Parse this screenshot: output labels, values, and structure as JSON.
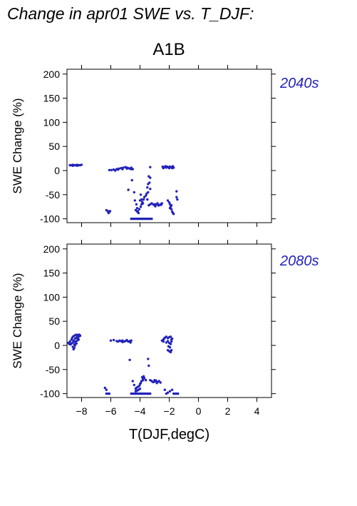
{
  "title": "Change in apr01 SWE vs. T_DJF:",
  "scenario": "A1B",
  "chart_data": [
    {
      "type": "scatter",
      "panel_label": "2040s",
      "xlabel": "T(DJF,degC)",
      "ylabel": "SWE Change (%)",
      "xlim": [
        -9,
        5
      ],
      "ylim": [
        -108,
        210
      ],
      "xticks": [
        -8,
        -6,
        -4,
        -2,
        0,
        2,
        4
      ],
      "yticks": [
        -100,
        -50,
        0,
        50,
        100,
        150,
        200
      ],
      "marker_color": "#2222bb",
      "points": [
        [
          -8.8,
          11
        ],
        [
          -8.7,
          11
        ],
        [
          -8.6,
          12
        ],
        [
          -8.5,
          11
        ],
        [
          -8.4,
          11
        ],
        [
          -8.3,
          12
        ],
        [
          -8.2,
          11
        ],
        [
          -8.1,
          11
        ],
        [
          -8.0,
          12
        ],
        [
          -8.6,
          10
        ],
        [
          -8.3,
          10
        ],
        [
          -6.3,
          -82
        ],
        [
          -6.2,
          -84
        ],
        [
          -6.1,
          -86
        ],
        [
          -6.15,
          -88
        ],
        [
          -6.05,
          -84
        ],
        [
          -6.2,
          -85
        ],
        [
          -6.1,
          1
        ],
        [
          -5.95,
          1
        ],
        [
          -5.8,
          2
        ],
        [
          -5.7,
          0
        ],
        [
          -5.6,
          3
        ],
        [
          -5.45,
          4
        ],
        [
          -5.3,
          5
        ],
        [
          -5.15,
          6
        ],
        [
          -5.0,
          7
        ],
        [
          -4.9,
          6
        ],
        [
          -4.8,
          5
        ],
        [
          -4.7,
          4
        ],
        [
          -4.6,
          3
        ],
        [
          -4.5,
          3
        ],
        [
          -5.5,
          2
        ],
        [
          -5.2,
          3
        ],
        [
          -4.9,
          4
        ],
        [
          -4.6,
          6
        ],
        [
          -4.8,
          -40
        ],
        [
          -4.55,
          -20
        ],
        [
          -4.4,
          -45
        ],
        [
          -4.35,
          -62
        ],
        [
          -4.25,
          -70
        ],
        [
          -4.2,
          -78
        ],
        [
          -4.15,
          -84
        ],
        [
          -4.1,
          -88
        ],
        [
          -4.05,
          -80
        ],
        [
          -3.95,
          -75
        ],
        [
          -3.9,
          -70
        ],
        [
          -3.85,
          -65
        ],
        [
          -3.8,
          -68
        ],
        [
          -3.75,
          -60
        ],
        [
          -3.7,
          -55
        ],
        [
          -3.6,
          -52
        ],
        [
          -3.55,
          -48
        ],
        [
          -3.5,
          -35
        ],
        [
          -3.45,
          -28
        ],
        [
          -3.4,
          -12
        ],
        [
          -3.35,
          -25
        ],
        [
          -3.3,
          -38
        ],
        [
          -4.0,
          -62
        ],
        [
          -3.95,
          -50
        ],
        [
          -4.3,
          -82
        ],
        [
          -4.2,
          -85
        ],
        [
          -3.9,
          -60
        ],
        [
          -3.45,
          -45
        ],
        [
          -3.3,
          -15
        ],
        [
          -3.5,
          -60
        ],
        [
          -4.6,
          -100
        ],
        [
          -4.5,
          -100
        ],
        [
          -4.4,
          -100
        ],
        [
          -4.3,
          -100
        ],
        [
          -4.2,
          -100
        ],
        [
          -4.1,
          -100
        ],
        [
          -4.0,
          -100
        ],
        [
          -3.9,
          -100
        ],
        [
          -3.8,
          -100
        ],
        [
          -3.7,
          -100
        ],
        [
          -3.6,
          -100
        ],
        [
          -3.5,
          -100
        ],
        [
          -3.4,
          -100
        ],
        [
          -3.3,
          -100
        ],
        [
          -3.2,
          -100
        ],
        [
          -3.4,
          -72
        ],
        [
          -3.3,
          -70
        ],
        [
          -3.2,
          -68
        ],
        [
          -3.1,
          -70
        ],
        [
          -3.0,
          -72
        ],
        [
          -2.9,
          -70
        ],
        [
          -2.8,
          -68
        ],
        [
          -2.7,
          -72
        ],
        [
          -2.6,
          -70
        ],
        [
          -2.5,
          -68
        ],
        [
          -2.95,
          -74
        ],
        [
          -2.75,
          -72
        ],
        [
          -2.55,
          -71
        ],
        [
          -3.3,
          7
        ],
        [
          -3.0,
          -70
        ],
        [
          -2.45,
          8
        ],
        [
          -2.35,
          7
        ],
        [
          -2.25,
          9
        ],
        [
          -2.15,
          8
        ],
        [
          -2.05,
          7
        ],
        [
          -1.95,
          8
        ],
        [
          -1.85,
          7
        ],
        [
          -1.75,
          9
        ],
        [
          -1.7,
          6
        ],
        [
          -2.4,
          5
        ],
        [
          -2.2,
          6
        ],
        [
          -2.0,
          5
        ],
        [
          -1.8,
          5
        ],
        [
          -2.1,
          -62
        ],
        [
          -2.0,
          -66
        ],
        [
          -1.95,
          -70
        ],
        [
          -1.9,
          -75
        ],
        [
          -1.85,
          -80
        ],
        [
          -1.8,
          -85
        ],
        [
          -1.75,
          -88
        ],
        [
          -1.7,
          -90
        ],
        [
          -1.85,
          -72
        ],
        [
          -1.95,
          -78
        ],
        [
          -1.5,
          -43
        ],
        [
          -1.5,
          -55
        ],
        [
          -1.45,
          -60
        ]
      ]
    },
    {
      "type": "scatter",
      "panel_label": "2080s",
      "xlabel": "T(DJF,degC)",
      "ylabel": "SWE Change (%)",
      "xlim": [
        -9,
        5
      ],
      "ylim": [
        -108,
        210
      ],
      "xticks": [
        -8,
        -6,
        -4,
        -2,
        0,
        2,
        4
      ],
      "yticks": [
        -100,
        -50,
        0,
        50,
        100,
        150,
        200
      ],
      "marker_color": "#2222bb",
      "points": [
        [
          -8.9,
          5
        ],
        [
          -8.85,
          3
        ],
        [
          -8.8,
          8
        ],
        [
          -8.75,
          2
        ],
        [
          -8.7,
          12
        ],
        [
          -8.65,
          15
        ],
        [
          -8.6,
          18
        ],
        [
          -8.55,
          10
        ],
        [
          -8.5,
          20
        ],
        [
          -8.45,
          14
        ],
        [
          -8.4,
          22
        ],
        [
          -8.35,
          16
        ],
        [
          -8.3,
          20
        ],
        [
          -8.25,
          22
        ],
        [
          -8.2,
          18
        ],
        [
          -8.15,
          22
        ],
        [
          -8.1,
          20
        ],
        [
          -8.6,
          -3
        ],
        [
          -8.55,
          -8
        ],
        [
          -8.5,
          -5
        ],
        [
          -8.45,
          0
        ],
        [
          -8.7,
          4
        ],
        [
          -8.4,
          6
        ],
        [
          -8.3,
          10
        ],
        [
          -8.2,
          12
        ],
        [
          -8.35,
          4
        ],
        [
          -8.5,
          2
        ],
        [
          -8.45,
          8
        ],
        [
          -8.25,
          14
        ],
        [
          -8.6,
          6
        ],
        [
          -6.4,
          -88
        ],
        [
          -6.3,
          -92
        ],
        [
          -6.3,
          -100
        ],
        [
          -6.2,
          -100
        ],
        [
          -6.1,
          -100
        ],
        [
          -6.0,
          10
        ],
        [
          -5.8,
          11
        ],
        [
          -5.6,
          9
        ],
        [
          -5.5,
          8
        ],
        [
          -5.4,
          10
        ],
        [
          -5.3,
          9
        ],
        [
          -5.2,
          10
        ],
        [
          -5.1,
          8
        ],
        [
          -5.0,
          9
        ],
        [
          -4.9,
          10
        ],
        [
          -4.8,
          8
        ],
        [
          -4.7,
          9
        ],
        [
          -4.6,
          10
        ],
        [
          -5.2,
          7
        ],
        [
          -4.9,
          11
        ],
        [
          -4.7,
          8
        ],
        [
          -4.65,
          6
        ],
        [
          -4.7,
          -30
        ],
        [
          -4.6,
          -100
        ],
        [
          -4.5,
          -100
        ],
        [
          -4.4,
          -100
        ],
        [
          -4.3,
          -100
        ],
        [
          -4.2,
          -100
        ],
        [
          -4.1,
          -100
        ],
        [
          -4.0,
          -100
        ],
        [
          -3.9,
          -100
        ],
        [
          -3.8,
          -100
        ],
        [
          -3.7,
          -100
        ],
        [
          -3.6,
          -100
        ],
        [
          -3.5,
          -100
        ],
        [
          -3.4,
          -100
        ],
        [
          -3.3,
          -100
        ],
        [
          -4.5,
          -74
        ],
        [
          -4.4,
          -82
        ],
        [
          -4.3,
          -90
        ],
        [
          -4.25,
          -88
        ],
        [
          -4.2,
          -94
        ],
        [
          -4.15,
          -86
        ],
        [
          -4.1,
          -92
        ],
        [
          -4.05,
          -84
        ],
        [
          -4.0,
          -90
        ],
        [
          -3.95,
          -78
        ],
        [
          -3.9,
          -74
        ],
        [
          -3.85,
          -66
        ],
        [
          -3.8,
          -70
        ],
        [
          -3.75,
          -64
        ],
        [
          -3.7,
          -68
        ],
        [
          -3.6,
          -72
        ],
        [
          -4.3,
          -95
        ],
        [
          -4.0,
          -80
        ],
        [
          -3.8,
          -72
        ],
        [
          -3.45,
          -28
        ],
        [
          -3.4,
          -42
        ],
        [
          -3.3,
          -72
        ],
        [
          -3.2,
          -74
        ],
        [
          -3.1,
          -76
        ],
        [
          -3.0,
          -75
        ],
        [
          -2.9,
          -73
        ],
        [
          -2.8,
          -76
        ],
        [
          -2.7,
          -74
        ],
        [
          -2.6,
          -77
        ],
        [
          -3.0,
          -72
        ],
        [
          -2.85,
          -78
        ],
        [
          -2.5,
          10
        ],
        [
          -2.4,
          12
        ],
        [
          -2.35,
          14
        ],
        [
          -2.3,
          16
        ],
        [
          -2.2,
          18
        ],
        [
          -2.1,
          15
        ],
        [
          -2.0,
          17
        ],
        [
          -1.9,
          18
        ],
        [
          -1.85,
          12
        ],
        [
          -1.8,
          14
        ],
        [
          -2.4,
          8
        ],
        [
          -2.2,
          6
        ],
        [
          -2.1,
          9
        ],
        [
          -2.0,
          5
        ],
        [
          -1.9,
          3
        ],
        [
          -1.85,
          8
        ],
        [
          -2.05,
          -2
        ],
        [
          -1.95,
          -4
        ],
        [
          -2.1,
          -10
        ],
        [
          -2.0,
          -12
        ],
        [
          -1.9,
          -14
        ],
        [
          -1.85,
          -10
        ],
        [
          -2.3,
          -92
        ],
        [
          -2.2,
          -100
        ],
        [
          -2.1,
          -98
        ],
        [
          -1.95,
          -95
        ],
        [
          -1.8,
          -92
        ],
        [
          -1.7,
          -100
        ],
        [
          -1.6,
          -100
        ],
        [
          -1.5,
          -100
        ],
        [
          -1.4,
          -100
        ]
      ]
    }
  ]
}
